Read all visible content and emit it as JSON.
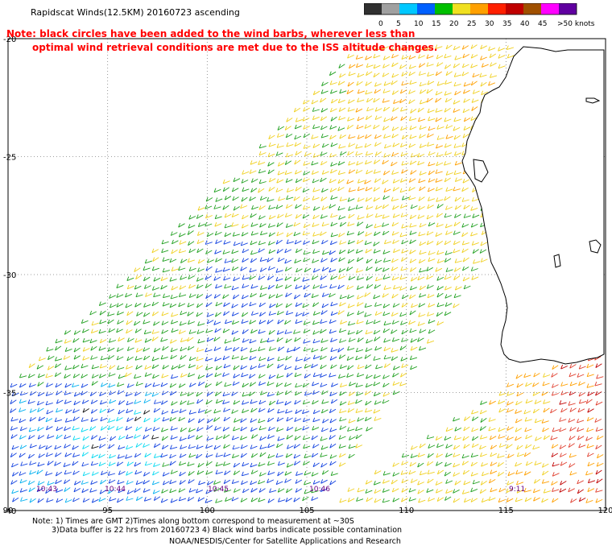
{
  "header": {
    "title": "Rapidscat Winds(12.5KM) 20160723 ascending",
    "note_line1": "Note: black circles have been added to the wind barbs, wherever less than",
    "note_line2": "optimal wind retrieval conditions are met due to the ISS altitude changes."
  },
  "legend": {
    "labels": [
      "0",
      "5",
      "10",
      "15",
      "20",
      "25",
      "30",
      "35",
      "40",
      "45",
      ">50 knots"
    ],
    "colors": [
      "#303030",
      "#a0a0a0",
      "#00c8ff",
      "#0060ff",
      "#00c000",
      "#f0e020",
      "#ffa000",
      "#ff2000",
      "#c00000",
      "#a05000",
      "#ff00ff",
      "#6000a0"
    ]
  },
  "axes": {
    "lon_labels": [
      "90",
      "95",
      "100",
      "105",
      "110",
      "115",
      "120"
    ],
    "lat_labels": [
      "-20",
      "-25",
      "-30",
      "-35",
      "-40"
    ]
  },
  "time_labels": [
    "10:43",
    "10:44",
    "10:45",
    "10:46",
    "9:11"
  ],
  "footer": {
    "line1": "Note: 1) Times are GMT 2)Times along bottom correspond to measurement at ~30S",
    "line2": "3)Data buffer is 22 hrs from 20160723 4) Black wind barbs indicate possible contamination",
    "credit": "NOAA/NESDIS/Center for Satellite Applications and Research"
  },
  "map": {
    "land_color": "#ffffff",
    "coast_color": "#000000",
    "grid_color": "#808080"
  }
}
